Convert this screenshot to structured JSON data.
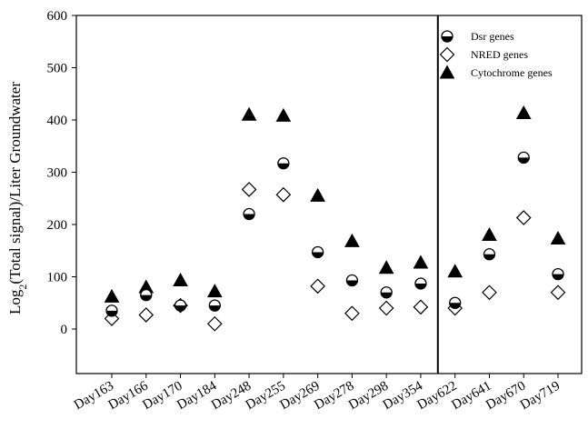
{
  "chart_data": {
    "type": "scatter",
    "title": "",
    "xlabel": "",
    "ylabel_main": "Log",
    "ylabel_sub": "2",
    "ylabel_rest": "(Total signal)/Liter Groundwater",
    "ylim": [
      -90,
      600
    ],
    "yticks": [
      0,
      100,
      200,
      300,
      400,
      500,
      600
    ],
    "categories": [
      "Day163",
      "Day166",
      "Day170",
      "Day184",
      "Day248",
      "Day255",
      "Day269",
      "Day278",
      "Day298",
      "Day354",
      "Day622",
      "Day641",
      "Day670",
      "Day719"
    ],
    "divider_between": [
      "Day354",
      "Day622"
    ],
    "legend_position": "top-right",
    "series": [
      {
        "name": "Dsr genes",
        "marker": "half-filled-circle",
        "values": [
          35,
          65,
          45,
          45,
          220,
          317,
          147,
          93,
          70,
          87,
          50,
          143,
          328,
          105
        ]
      },
      {
        "name": "NRED genes",
        "marker": "open-diamond",
        "values": [
          20,
          27,
          45,
          10,
          267,
          257,
          82,
          30,
          40,
          42,
          40,
          70,
          213,
          70
        ]
      },
      {
        "name": "Cytochrome genes",
        "marker": "filled-triangle",
        "values": [
          62,
          80,
          93,
          72,
          410,
          408,
          255,
          168,
          117,
          127,
          110,
          180,
          413,
          173
        ]
      }
    ]
  }
}
